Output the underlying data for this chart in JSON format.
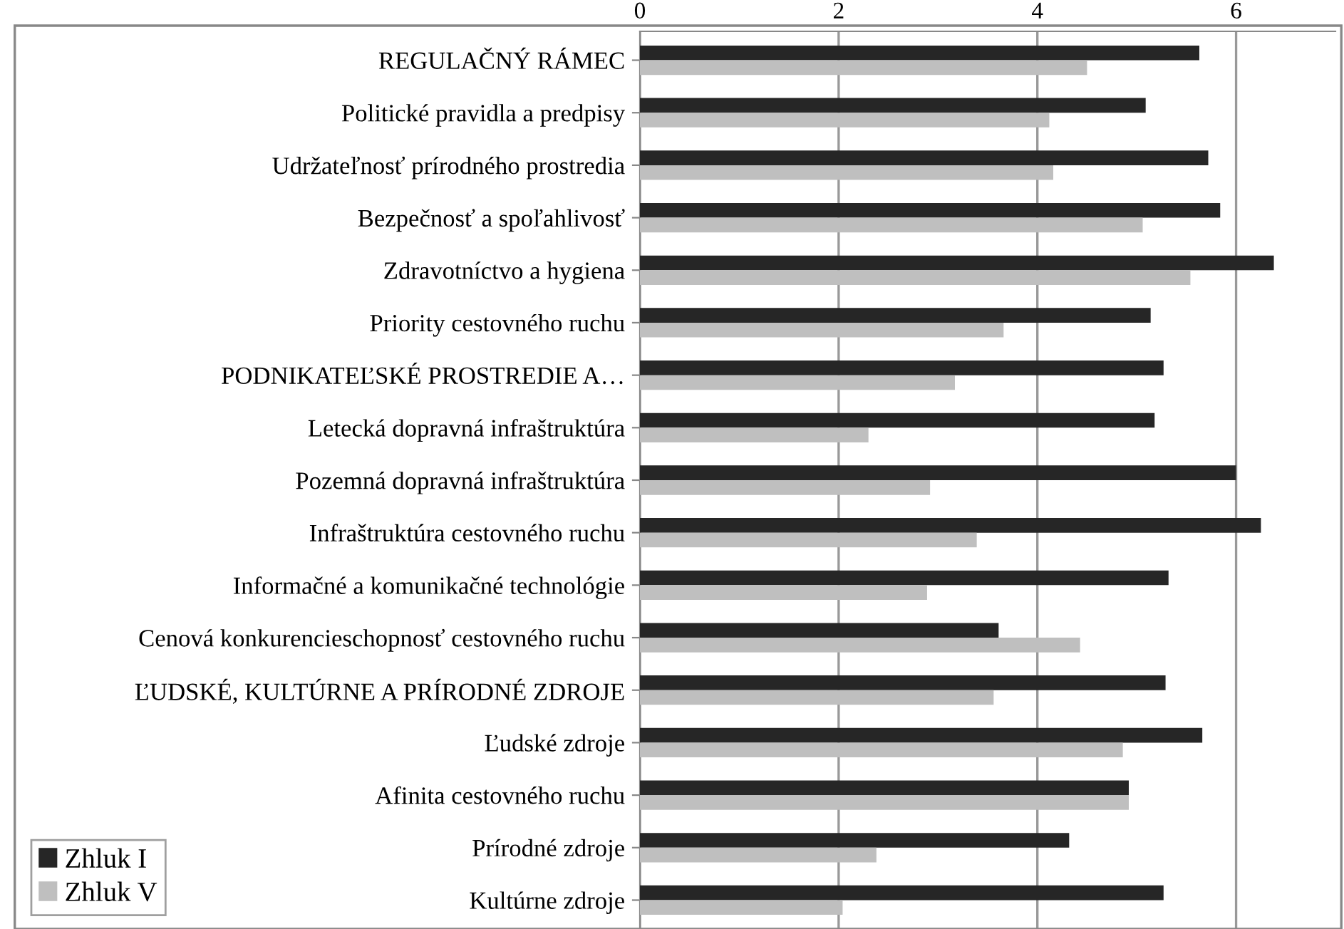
{
  "chart_data": {
    "type": "bar",
    "orientation": "horizontal",
    "categories": [
      "REGULAČNÝ RÁMEC",
      "Politické pravidla a predpisy",
      "Udržateľnosť prírodného prostredia",
      "Bezpečnosť a spoľahlivosť",
      "Zdravotníctvo a hygiena",
      "Priority cestovného ruchu",
      "PODNIKATEĽSKÉ PROSTREDIE A…",
      "Letecká dopravná infraštruktúra",
      "Pozemná dopravná infraštruktúra",
      "Infraštruktúra cestovného ruchu",
      "Informačné a komunikačné technológie",
      "Cenová konkurencieschopnosť cestovného ruchu",
      "ĽUDSKÉ, KULTÚRNE A PRÍRODNÉ ZDROJE",
      "Ľudské zdroje",
      "Afinita cestovného ruchu",
      "Prírodné zdroje",
      "Kultúrne zdroje"
    ],
    "series": [
      {
        "name": "Zhluk I",
        "color": "#262626",
        "values": [
          5.63,
          5.09,
          5.72,
          5.84,
          6.38,
          5.14,
          5.27,
          5.18,
          6.0,
          6.25,
          5.32,
          3.61,
          5.29,
          5.66,
          4.92,
          4.32,
          5.27
        ]
      },
      {
        "name": "Zhluk V",
        "color": "#bfbfbf",
        "values": [
          4.5,
          4.12,
          4.16,
          5.06,
          5.54,
          3.66,
          3.17,
          2.3,
          2.92,
          3.39,
          2.89,
          4.43,
          3.56,
          4.86,
          4.92,
          2.38,
          2.04
        ]
      }
    ],
    "xlim": [
      0,
      7
    ],
    "xticks": [
      0,
      2,
      4,
      6
    ],
    "grid": "x",
    "legend": "bottom left"
  }
}
